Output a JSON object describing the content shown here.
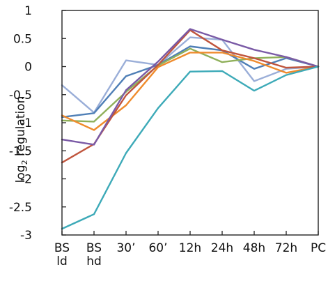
{
  "chart_data": {
    "type": "line",
    "title": "",
    "xlabel": "",
    "ylabel": {
      "prefix": "log",
      "subscript": "2",
      "suffix": " regulation"
    },
    "ylim": [
      -3,
      1
    ],
    "yticks": [
      "1",
      "0.5",
      "0",
      "-0.5",
      "-1",
      "-1.5",
      "-2",
      "-2.5",
      "-3"
    ],
    "ytick_values": [
      1,
      0.5,
      0,
      -0.5,
      -1,
      -1.5,
      -2,
      -2.5,
      -3
    ],
    "categories": [
      "BS ld",
      "BS hd",
      "30’",
      "60’",
      "12h",
      "24h",
      "48h",
      "72h",
      "PC"
    ],
    "category_lines": [
      [
        "BS",
        "ld"
      ],
      [
        "BS",
        "hd"
      ],
      [
        "30’"
      ],
      [
        "60’"
      ],
      [
        "12h"
      ],
      [
        "24h"
      ],
      [
        "48h"
      ],
      [
        "72h"
      ],
      [
        "PC"
      ]
    ],
    "grid": false,
    "series": [
      {
        "color": "#9aaed8",
        "values": [
          -0.33,
          -0.82,
          0.11,
          0.03,
          0.52,
          0.48,
          -0.26,
          -0.04,
          0.0
        ]
      },
      {
        "color": "#4f7fb6",
        "values": [
          -0.9,
          -0.83,
          -0.17,
          0.03,
          0.36,
          0.29,
          -0.04,
          0.15,
          0.0
        ]
      },
      {
        "color": "#8fb05a",
        "values": [
          -0.96,
          -0.98,
          -0.45,
          0.02,
          0.32,
          0.08,
          0.15,
          0.17,
          0.0
        ]
      },
      {
        "color": "#ef8b2c",
        "values": [
          -0.87,
          -1.13,
          -0.69,
          -0.01,
          0.25,
          0.25,
          0.1,
          -0.11,
          0.0
        ]
      },
      {
        "color": "#c0553d",
        "values": [
          -1.71,
          -1.38,
          -0.51,
          0.03,
          0.65,
          0.29,
          0.15,
          -0.02,
          0.0
        ]
      },
      {
        "color": "#7a5aa6",
        "values": [
          -1.3,
          -1.39,
          -0.42,
          0.09,
          0.67,
          0.48,
          0.3,
          0.17,
          0.0
        ]
      },
      {
        "color": "#3daab8",
        "values": [
          -2.89,
          -2.63,
          -1.54,
          -0.74,
          -0.09,
          -0.08,
          -0.43,
          -0.15,
          0.0
        ]
      }
    ]
  }
}
